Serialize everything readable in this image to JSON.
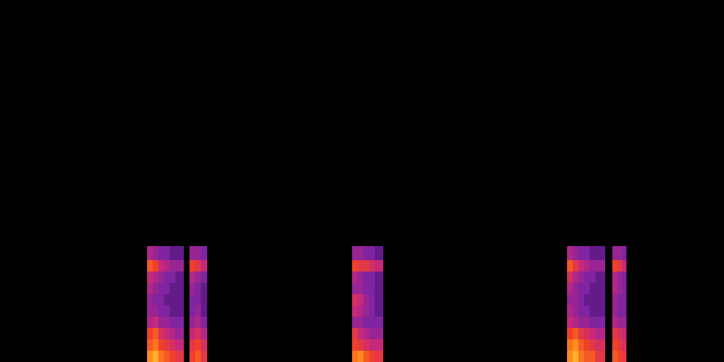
{
  "chart_data": {
    "type": "heatmap",
    "xlim": [
      0,
      1024
    ],
    "ylim": [
      0,
      512
    ],
    "tick_labels": false,
    "color_range": [
      0,
      1
    ],
    "x_edges": [
      0,
      208,
      216,
      224,
      232,
      240,
      248,
      260,
      268,
      276,
      284,
      293,
      498,
      506,
      514,
      522,
      530,
      542,
      802,
      810,
      818,
      826,
      834,
      842,
      856,
      866,
      874,
      880,
      886,
      1024
    ],
    "y_edges": [
      0,
      16,
      32,
      48,
      64,
      80,
      96,
      112,
      128,
      144,
      164,
      512
    ],
    "cells": [
      [
        0,
        0.9,
        0.95,
        0.85,
        0.8,
        0.75,
        0.7,
        0,
        0.75,
        0.8,
        0.7,
        0,
        0.85,
        0.9,
        0.8,
        0.75,
        0.7,
        0,
        0.9,
        0.95,
        0.85,
        0.8,
        0.8,
        0.7,
        0,
        0.8,
        0.75,
        0.7,
        0
      ],
      [
        0,
        0.8,
        0.85,
        0.75,
        0.7,
        0.65,
        0.6,
        0,
        0.7,
        0.75,
        0.65,
        0,
        0.75,
        0.7,
        0.65,
        0.6,
        0.6,
        0,
        0.85,
        0.9,
        0.8,
        0.75,
        0.7,
        0.65,
        0,
        0.75,
        0.7,
        0.65,
        0
      ],
      [
        0,
        0.75,
        0.8,
        0.65,
        0.6,
        0.55,
        0.5,
        0,
        0.6,
        0.65,
        0.55,
        0,
        0.7,
        0.6,
        0.55,
        0.5,
        0.5,
        0,
        0.75,
        0.8,
        0.7,
        0.65,
        0.6,
        0.55,
        0,
        0.7,
        0.65,
        0.6,
        0
      ],
      [
        0,
        0.55,
        0.6,
        0.5,
        0.5,
        0.45,
        0.45,
        0,
        0.5,
        0.55,
        0.45,
        0,
        0.5,
        0.5,
        0.45,
        0.45,
        0.45,
        0,
        0.6,
        0.55,
        0.5,
        0.5,
        0.45,
        0.45,
        0,
        0.55,
        0.5,
        0.5,
        0
      ],
      [
        0,
        0.5,
        0.5,
        0.45,
        0.45,
        0.4,
        0.4,
        0,
        0.45,
        0.5,
        0.4,
        0,
        0.6,
        0.55,
        0.5,
        0.45,
        0.4,
        0,
        0.55,
        0.5,
        0.45,
        0.45,
        0.4,
        0.4,
        0,
        0.5,
        0.45,
        0.45,
        0
      ],
      [
        0,
        0.5,
        0.45,
        0.45,
        0.4,
        0.4,
        0.4,
        0,
        0.45,
        0.45,
        0.4,
        0,
        0.65,
        0.6,
        0.5,
        0.45,
        0.4,
        0,
        0.5,
        0.5,
        0.45,
        0.4,
        0.4,
        0.4,
        0,
        0.5,
        0.45,
        0.45,
        0
      ],
      [
        0,
        0.55,
        0.5,
        0.45,
        0.45,
        0.4,
        0.4,
        0,
        0.5,
        0.45,
        0.4,
        0,
        0.5,
        0.5,
        0.45,
        0.45,
        0.4,
        0,
        0.55,
        0.5,
        0.45,
        0.45,
        0.4,
        0.4,
        0,
        0.55,
        0.5,
        0.45,
        0
      ],
      [
        0,
        0.6,
        0.55,
        0.5,
        0.45,
        0.45,
        0.4,
        0,
        0.55,
        0.5,
        0.45,
        0,
        0.55,
        0.5,
        0.45,
        0.45,
        0.4,
        0,
        0.65,
        0.55,
        0.5,
        0.45,
        0.45,
        0.4,
        0,
        0.55,
        0.5,
        0.45,
        0
      ],
      [
        0,
        0.8,
        0.75,
        0.6,
        0.55,
        0.5,
        0.5,
        0,
        0.75,
        0.7,
        0.6,
        0,
        0.75,
        0.7,
        0.7,
        0.65,
        0.6,
        0,
        0.8,
        0.7,
        0.6,
        0.55,
        0.5,
        0.5,
        0,
        0.75,
        0.7,
        0.6,
        0
      ],
      [
        0,
        0.55,
        0.5,
        0.45,
        0.45,
        0.4,
        0.4,
        0,
        0.5,
        0.5,
        0.45,
        0,
        0.5,
        0.5,
        0.45,
        0.45,
        0.4,
        0,
        0.55,
        0.5,
        0.45,
        0.45,
        0.4,
        0.4,
        0,
        0.5,
        0.5,
        0.45,
        0
      ],
      [
        0,
        0,
        0,
        0,
        0,
        0,
        0,
        0,
        0,
        0,
        0,
        0,
        0,
        0,
        0,
        0,
        0,
        0,
        0,
        0,
        0,
        0,
        0,
        0,
        0,
        0,
        0,
        0,
        0
      ]
    ]
  }
}
